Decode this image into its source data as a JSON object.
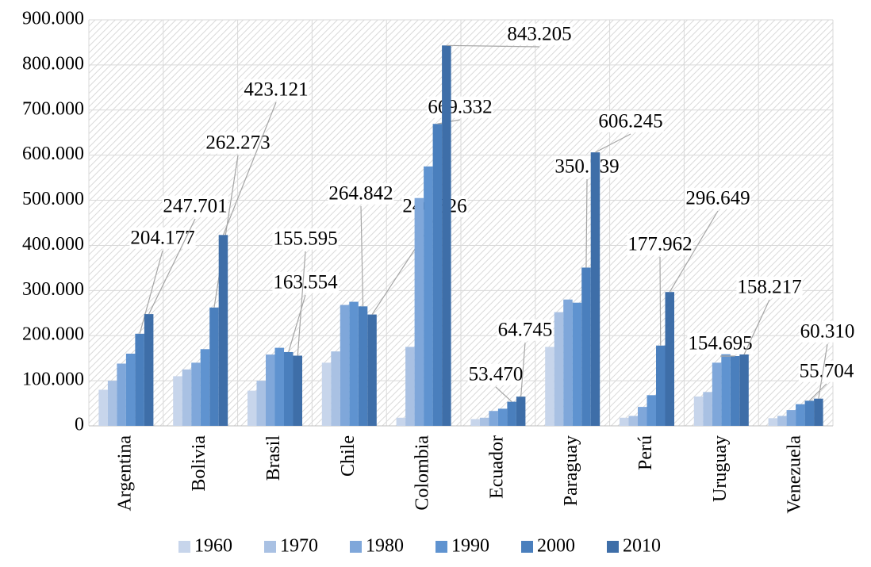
{
  "chart_data": {
    "type": "bar",
    "categories": [
      "Argentina",
      "Bolivia",
      "Brasil",
      "Chile",
      "Colombia",
      "Ecuador",
      "Paraguay",
      "Perú",
      "Uruguay",
      "Venezuela"
    ],
    "series": [
      {
        "name": "1960",
        "color": "#c7d5eb",
        "values": [
          80000,
          110000,
          78000,
          140000,
          18000,
          15000,
          175000,
          18000,
          65000,
          17000
        ]
      },
      {
        "name": "1970",
        "color": "#a9c1e3",
        "values": [
          100000,
          125000,
          100000,
          165000,
          175000,
          18000,
          252000,
          22000,
          75000,
          22000
        ]
      },
      {
        "name": "1980",
        "color": "#7fa7da",
        "values": [
          138000,
          140000,
          158000,
          268000,
          505000,
          33000,
          280000,
          42000,
          140000,
          35000
        ]
      },
      {
        "name": "1990",
        "color": "#5f93d0",
        "values": [
          160000,
          170000,
          173000,
          275000,
          575000,
          38000,
          273000,
          68000,
          163000,
          48000
        ]
      },
      {
        "name": "2000",
        "color": "#4a7fbd",
        "values": [
          204177,
          262273,
          163554,
          264842,
          669332,
          53470,
          350739,
          177962,
          154695,
          55704
        ],
        "value_labels": [
          "204.177",
          "262.273",
          "163.554",
          "264.842",
          "669.332",
          "53.470",
          "350.739",
          "177.962",
          "154.695",
          "55.704"
        ]
      },
      {
        "name": "2010",
        "color": "#3e6ea8",
        "values": [
          247701,
          423121,
          155595,
          246826,
          843205,
          64745,
          606245,
          296649,
          158217,
          60310
        ],
        "value_labels": [
          "247.701",
          "423.121",
          "155.595",
          "246.826",
          "843.205",
          "64.745",
          "606.245",
          "296.649",
          "158.217",
          "60.310"
        ]
      }
    ],
    "ylim": [
      0,
      900000
    ],
    "yticks": [
      0,
      {
        "value": 100000,
        "label": "100.000"
      },
      {
        "value": 200000,
        "label": "200.000"
      },
      {
        "value": 300000,
        "label": "300.000"
      },
      {
        "value": 400000,
        "label": "400.000"
      },
      {
        "value": 500000,
        "label": "500.000"
      },
      {
        "value": 600000,
        "label": "600.000"
      },
      {
        "value": 700000,
        "label": "700.000"
      },
      {
        "value": 800000,
        "label": "800.000"
      },
      {
        "value": 900000,
        "label": "900.000"
      }
    ],
    "grid": true,
    "legend": "bottom"
  }
}
